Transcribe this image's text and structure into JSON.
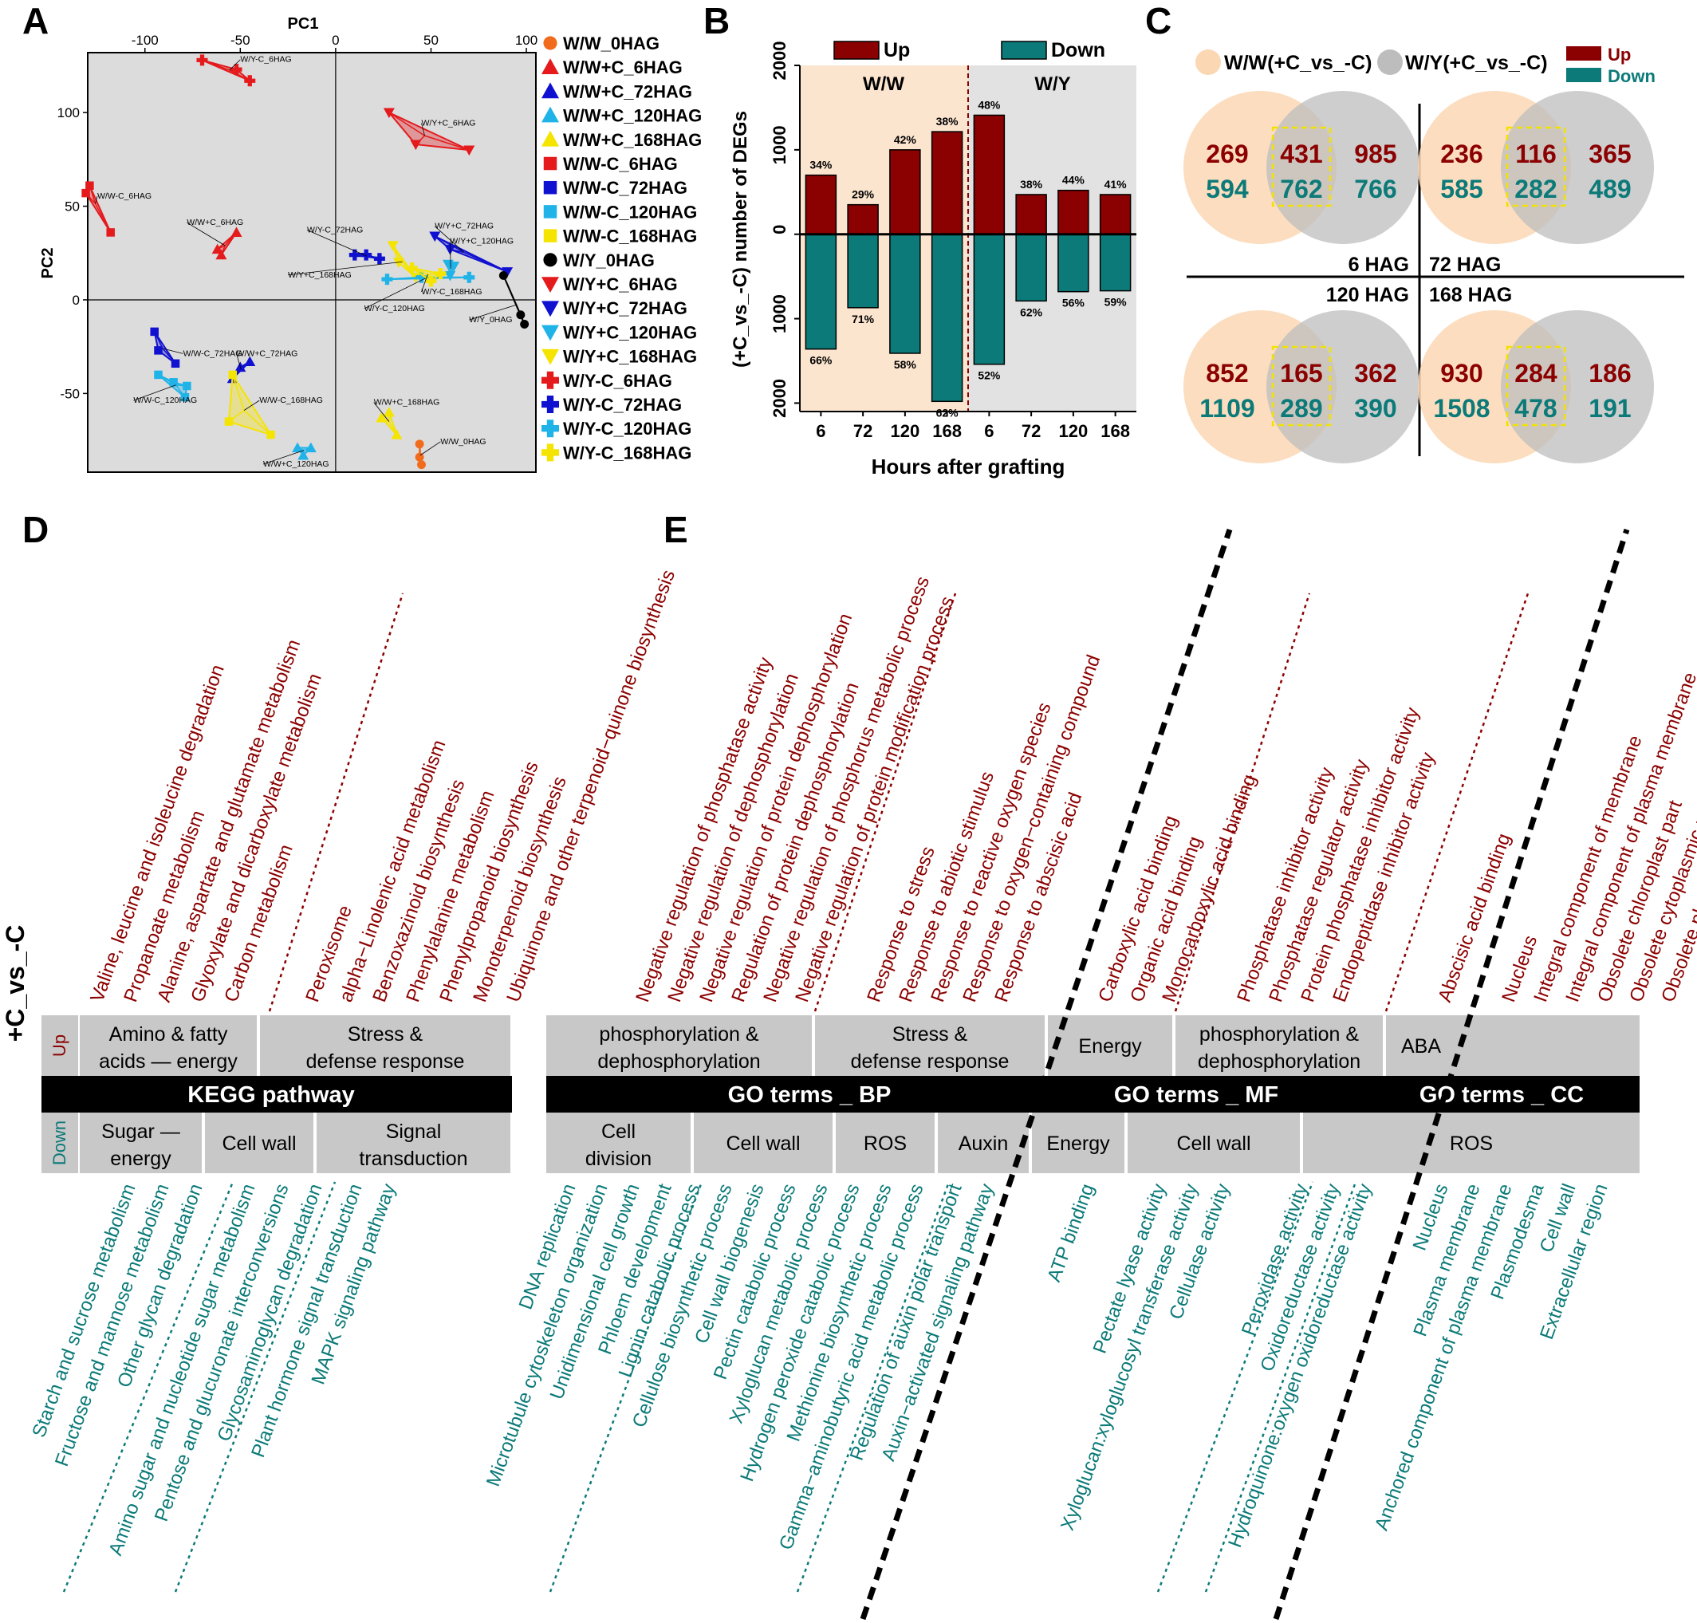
{
  "colors": {
    "up": "#8b0000",
    "down": "#0b7a78",
    "bg_grey": "#e2e2e2",
    "bg_peach": "#fbe5cf",
    "venn_ww": "#fbd7b4",
    "venn_wy": "#bdbdbd",
    "box_grey": "#c8c8c8",
    "black_bar": "#000000",
    "highlight": "#f2e200"
  },
  "panel_labels": {
    "a": "A",
    "b": "B",
    "c": "C",
    "d": "D",
    "e": "E"
  },
  "panelA": {
    "x_title": "PC1",
    "y_title": "PC2",
    "x_ticks": [
      -100,
      -50,
      0,
      50,
      100
    ],
    "y_ticks": [
      -50,
      0,
      50,
      100
    ],
    "xlim": [
      -130,
      105
    ],
    "ylim": [
      -92,
      132
    ],
    "legend": [
      {
        "label": "W/W_0HAG",
        "color": "#f26b1d",
        "shape": "circle"
      },
      {
        "label": "W/W+C_6HAG",
        "color": "#e41a1c",
        "shape": "triangle-up"
      },
      {
        "label": "W/W+C_72HAG",
        "color": "#1010d0",
        "shape": "triangle-up"
      },
      {
        "label": "W/W+C_120HAG",
        "color": "#1fb3e8",
        "shape": "triangle-up"
      },
      {
        "label": "W/W+C_168HAG",
        "color": "#f5e400",
        "shape": "triangle-up"
      },
      {
        "label": "W/W-C_6HAG",
        "color": "#e41a1c",
        "shape": "square"
      },
      {
        "label": "W/W-C_72HAG",
        "color": "#1010d0",
        "shape": "square"
      },
      {
        "label": "W/W-C_120HAG",
        "color": "#1fb3e8",
        "shape": "square"
      },
      {
        "label": "W/W-C_168HAG",
        "color": "#f5e400",
        "shape": "square"
      },
      {
        "label": "W/Y_0HAG",
        "color": "#000000",
        "shape": "circle"
      },
      {
        "label": "W/Y+C_6HAG",
        "color": "#e41a1c",
        "shape": "triangle-down"
      },
      {
        "label": "W/Y+C_72HAG",
        "color": "#1010d0",
        "shape": "triangle-down"
      },
      {
        "label": "W/Y+C_120HAG",
        "color": "#1fb3e8",
        "shape": "triangle-down"
      },
      {
        "label": "W/Y+C_168HAG",
        "color": "#f5e400",
        "shape": "triangle-down"
      },
      {
        "label": "W/Y-C_6HAG",
        "color": "#e41a1c",
        "shape": "plus"
      },
      {
        "label": "W/Y-C_72HAG",
        "color": "#1010d0",
        "shape": "plus"
      },
      {
        "label": "W/Y-C_120HAG",
        "color": "#1fb3e8",
        "shape": "plus"
      },
      {
        "label": "W/Y-C_168HAG",
        "color": "#f5e400",
        "shape": "plus"
      }
    ],
    "groups": [
      {
        "label": "W/Y-C_6HAG",
        "li": 14,
        "pts": [
          [
            -70,
            128
          ],
          [
            -52,
            123
          ],
          [
            -45,
            117
          ]
        ],
        "lab": [
          -50,
          127
        ]
      },
      {
        "label": "W/Y+C_6HAG",
        "li": 10,
        "pts": [
          [
            28,
            100
          ],
          [
            70,
            80
          ],
          [
            42,
            83
          ]
        ],
        "lab": [
          45,
          93
        ]
      },
      {
        "label": "W/W-C_6HAG",
        "li": 5,
        "pts": [
          [
            -131,
            57
          ],
          [
            -129,
            61
          ],
          [
            -118,
            36
          ]
        ],
        "lab": [
          -125,
          54
        ]
      },
      {
        "label": "W/W+C_6HAG",
        "li": 1,
        "pts": [
          -62,
          27,
          -60,
          24,
          -52,
          36
        ],
        "lab": [
          -78,
          40
        ]
      },
      {
        "label": "W/Y-C_72HAG",
        "li": 15,
        "pts": [
          [
            10,
            24
          ],
          [
            16,
            24
          ],
          [
            23,
            22
          ]
        ],
        "lab": [
          -15,
          36
        ]
      },
      {
        "label": "W/Y+C_72HAG",
        "li": 11,
        "pts": [
          [
            52,
            34
          ],
          [
            60,
            27
          ],
          [
            90,
            15
          ]
        ],
        "lab": [
          52,
          38
        ]
      },
      {
        "label": "W/Y+C_168HAG",
        "li": 13,
        "pts": [
          [
            30,
            29
          ],
          [
            33,
            20
          ],
          [
            42,
            12
          ]
        ],
        "lab": [
          -25,
          12
        ]
      },
      {
        "label": "W/Y-C_120HAG",
        "li": 16,
        "pts": [
          [
            27,
            11
          ],
          [
            45,
            12
          ],
          [
            70,
            12
          ]
        ],
        "lab": [
          15,
          -6
        ]
      },
      {
        "label": "W/Y+C_120HAG",
        "li": 12,
        "pts": [
          [
            59,
            19
          ],
          [
            60,
            13
          ],
          [
            62,
            18
          ]
        ],
        "lab": [
          60,
          30
        ]
      },
      {
        "label": "W/Y-C_168HAG",
        "li": 17,
        "pts": [
          [
            40,
            17
          ],
          [
            50,
            10
          ],
          [
            55,
            14
          ]
        ],
        "lab": [
          45,
          3
        ]
      },
      {
        "label": "W/Y_0HAG",
        "li": 9,
        "pts": [
          [
            88,
            13
          ],
          [
            97,
            -8
          ],
          [
            99,
            -13
          ]
        ],
        "lab": [
          70,
          -12
        ]
      },
      {
        "label": "W/W-C_72HAG",
        "li": 6,
        "pts": [
          [
            -95,
            -17
          ],
          [
            -93,
            -27
          ],
          [
            -84,
            -34
          ]
        ],
        "lab": [
          -80,
          -30
        ]
      },
      {
        "label": "W/W+C_72HAG",
        "li": 2,
        "pts": [
          [
            -45,
            -33
          ],
          [
            -50,
            -36
          ],
          [
            -54,
            -42
          ]
        ],
        "lab": [
          -52,
          -30
        ]
      },
      {
        "label": "W/W-C_120HAG",
        "li": 7,
        "pts": [
          [
            -93,
            -40
          ],
          [
            -85,
            -44
          ],
          [
            -78,
            -46
          ],
          [
            -79,
            -52
          ]
        ],
        "lab": [
          -106,
          -55
        ]
      },
      {
        "label": "W/W-C_168HAG",
        "li": 8,
        "pts": [
          [
            -54,
            -40
          ],
          [
            -56,
            -65
          ],
          [
            -34,
            -72
          ]
        ],
        "lab": [
          -40,
          -55
        ]
      },
      {
        "label": "W/W+C_120HAG",
        "li": 3,
        "pts": [
          [
            -20,
            -79
          ],
          [
            -13,
            -79
          ],
          [
            -17,
            -83
          ]
        ],
        "lab": [
          -38,
          -89
        ]
      },
      {
        "label": "W/W+C_168HAG",
        "li": 4,
        "pts": [
          [
            24,
            -63
          ],
          [
            28,
            -60
          ],
          [
            32,
            -72
          ]
        ],
        "lab": [
          20,
          -56
        ]
      },
      {
        "label": "W/W_0HAG",
        "li": 0,
        "pts": [
          [
            44,
            -77
          ],
          [
            45,
            -88
          ],
          [
            44,
            -84
          ]
        ],
        "lab": [
          55,
          -77
        ]
      }
    ]
  },
  "chart_data": {
    "type": "bar",
    "ylabel": "(+C_vs_-C) number of DEGs",
    "xlabel": "Hours after grafting",
    "categories": [
      "6",
      "72",
      "120",
      "168",
      "6",
      "72",
      "120",
      "168"
    ],
    "groups": [
      "W/W",
      "W/W",
      "W/W",
      "W/W",
      "W/Y",
      "W/Y",
      "W/Y",
      "W/Y"
    ],
    "group_labels": [
      "W/W",
      "W/Y"
    ],
    "legend": [
      "Up",
      "Down"
    ],
    "ylim": [
      -2100,
      2000
    ],
    "y_ticks": [
      2000,
      1000,
      0,
      1000,
      2000
    ],
    "series": [
      {
        "name": "Up",
        "values": [
          700,
          350,
          1000,
          1215,
          1410,
          470,
          520,
          470
        ],
        "labels": [
          "34%",
          "29%",
          "42%",
          "38%",
          "48%",
          "38%",
          "44%",
          "41%"
        ]
      },
      {
        "name": "Down",
        "values": [
          -1360,
          -870,
          -1410,
          -1980,
          -1540,
          -790,
          -680,
          -670
        ],
        "labels": [
          "66%",
          "71%",
          "58%",
          "62%",
          "52%",
          "62%",
          "56%",
          "59%"
        ]
      }
    ]
  },
  "panelC": {
    "legend_ww": "W/W(+C_vs_-C)",
    "legend_wy": "W/Y(+C_vs_-C)",
    "legend_up": "Up",
    "legend_down": "Down",
    "labels": [
      "6 HAG",
      "72 HAG",
      "120 HAG",
      "168 HAG"
    ],
    "venns": [
      {
        "left_up": "269",
        "left_down": "594",
        "mid_up": "431",
        "mid_down": "762",
        "right_up": "985",
        "right_down": "766"
      },
      {
        "left_up": "236",
        "left_down": "585",
        "mid_up": "116",
        "mid_down": "282",
        "right_up": "365",
        "right_down": "489"
      },
      {
        "left_up": "852",
        "left_down": "1109",
        "mid_up": "165",
        "mid_down": "289",
        "right_up": "362",
        "right_down": "390"
      },
      {
        "left_up": "930",
        "left_down": "1508",
        "mid_up": "284",
        "mid_down": "478",
        "right_up": "186",
        "right_down": "191"
      }
    ]
  },
  "panelDE": {
    "side_label": "+C_vs_-C",
    "up_label": "Up",
    "down_label": "Down",
    "bars": [
      "KEGG pathway",
      "GO terms _ BP",
      "GO terms _ MF",
      "GO terms _ CC"
    ],
    "d_up_boxes": [
      "Amino & fatty acids — energy",
      "Stress & defense response"
    ],
    "d_down_boxes": [
      "Sugar — energy",
      "Cell wall",
      "Signal transduction"
    ],
    "e_up_boxes": [
      "phosphorylation & dephosphorylation",
      "Stress & defense response",
      "Energy",
      "phosphorylation & dephosphorylation",
      "ABA"
    ],
    "e_down_boxes": [
      "Cell division",
      "Cell wall",
      "ROS",
      "Auxin",
      "Energy",
      "Cell wall",
      "ROS"
    ],
    "d_up_terms": [
      "Valine, leucine and isoleucine degradation",
      "Propanoate metabolism",
      "Alanine, aspartate and glutamate metabolism",
      "Glyoxylate and dicarboxylate metabolism",
      "Carbon metabolism",
      "Peroxisome",
      "alpha−Linolenic acid metabolism",
      "Benzoxazinoid biosynthesis",
      "Phenylalanine metabolism",
      "Phenylpropanoid biosynthesis",
      "Monoterpenoid biosynthesis",
      "Ubiquinone and other terpenoid−quinone biosynthesis"
    ],
    "d_down_terms": [
      "Starch and sucrose metabolism",
      "Fructose and mannose metabolism",
      "Other glycan degradation",
      "Amino sugar and nucleotide sugar metabolism",
      "Pentose and glucuronate interconversions",
      "Glycosaminoglycan degradation",
      "Plant hormone signal transduction",
      "MAPK signaling pathway"
    ],
    "e_up_terms": [
      "Negative regulation of phosphatase activity",
      "Negative regulation of dephosphorylation",
      "Negative regulation of protein dephosphorylation",
      "Regulation of protein dephosphorylation",
      "Negative regulation of phosphorus metabolic process",
      "Negative regulation of protein modification process",
      "Response to stress",
      "Response to abiotic stimulus",
      "Response to reactive oxygen species",
      "Response to oxygen−containing compound",
      "Response to abscisic acid",
      "Carboxylic acid binding",
      "Organic acid binding",
      "Monocarboxylic acid binding",
      "Phosphatase inhibitor activity",
      "Phosphatase regulator activity",
      "Protein phosphatase inhibitor activity",
      "Endopeptidase inhibitor activity",
      "Abscisic acid binding",
      "Nucleus",
      "Integral component of membrane",
      "Integral component of plasma membrane",
      "Obsolete chloroplast part",
      "Obsolete cytoplasmic part",
      "Obsolete plastid part"
    ],
    "e_down_terms": [
      "DNA replication",
      "Microtubule cytoskeleton organization",
      "Unidimensional cell growth",
      "Phloem development",
      "Lignin catabolic process",
      "Cellulose biosynthetic process",
      "Cell wall biogenesis",
      "Pectin catabolic process",
      "Xyloglucan metabolic process",
      "Hydrogen peroxide catabolic process",
      "Methionine biosynthetic process",
      "Gamma−aminobutyric acid metabolic process",
      "Regulation of auxin polar transport",
      "Auxin−activated signaling pathway",
      "ATP binding",
      "Pectate lyase activity",
      "Xyloglucan:xyloglucosyl transferase activity",
      "Cellulase activity",
      "Peroxidase activity",
      "Oxidoreductase activity",
      "Hydroquinone:oxygen oxidoreductase activity",
      "Nucleus",
      "Plasma membrane",
      "Anchored component of plasma membrane",
      "Plasmodesma",
      "Cell wall",
      "Extracellular region"
    ]
  }
}
